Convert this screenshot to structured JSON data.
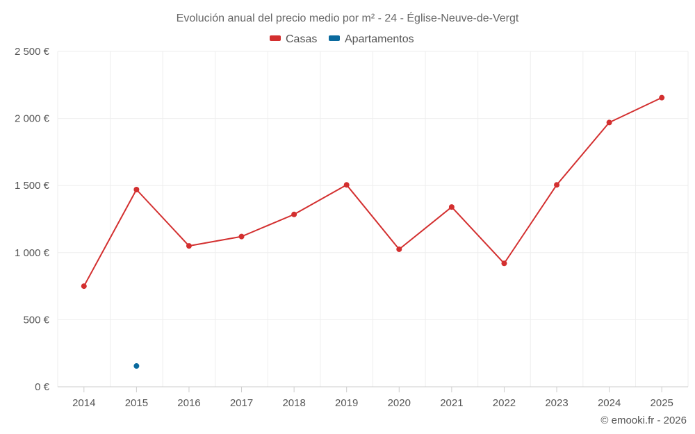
{
  "chart_data": {
    "type": "line",
    "title": "Evolución anual del precio medio por m² - 24 - Église-Neuve-de-Vergt",
    "categories": [
      "2014",
      "2015",
      "2016",
      "2017",
      "2018",
      "2019",
      "2020",
      "2021",
      "2022",
      "2023",
      "2024",
      "2025"
    ],
    "series": [
      {
        "name": "Casas",
        "color": "#d32f2f",
        "values": [
          750,
          1470,
          1050,
          1120,
          1285,
          1505,
          1025,
          1340,
          920,
          1505,
          1970,
          2155
        ]
      },
      {
        "name": "Apartamentos",
        "color": "#0a6a9e",
        "values": [
          null,
          155,
          null,
          null,
          null,
          null,
          null,
          null,
          null,
          null,
          null,
          null
        ]
      }
    ],
    "ylim": [
      0,
      2500
    ],
    "yticks": [
      0,
      500,
      1000,
      1500,
      2000,
      2500
    ],
    "ytick_labels": [
      "0 €",
      "500 €",
      "1 000 €",
      "1 500 €",
      "2 000 €",
      "2 500 €"
    ],
    "xlabel": "",
    "ylabel": "",
    "legend": "top-center",
    "grid": true
  },
  "credit": "© emooki.fr - 2026"
}
